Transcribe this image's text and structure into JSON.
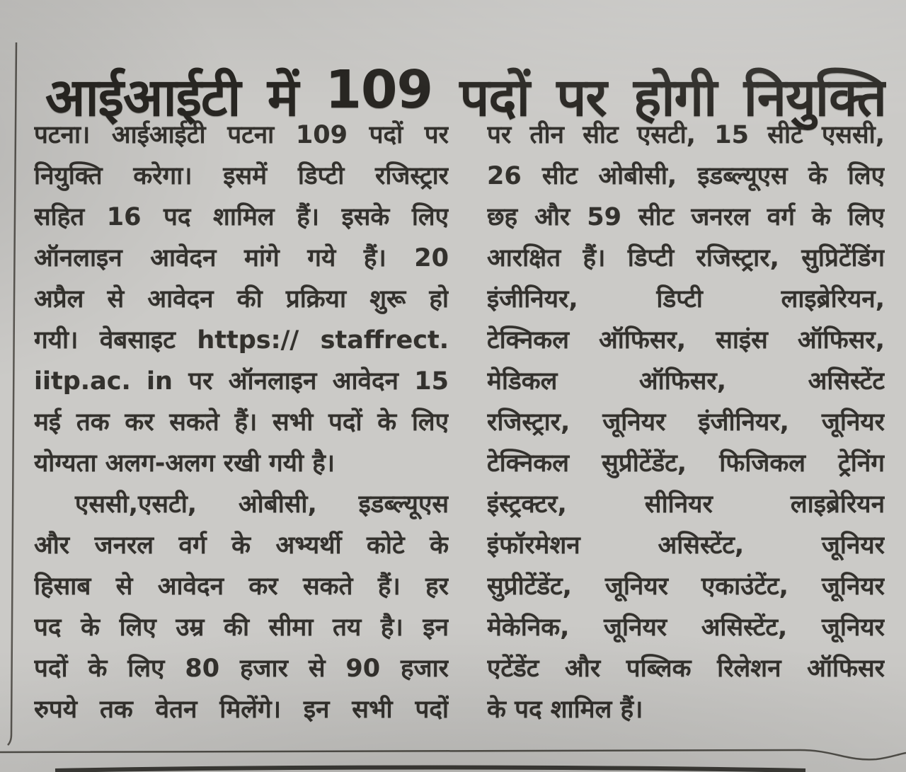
{
  "colors": {
    "paper": "#cbcac7",
    "ink": "#33312d",
    "headline_ink": "#282622",
    "rule": "#45423c"
  },
  "article": {
    "headline": "आईआईटी में 109 पदों पर होगी नियुक्ति",
    "left_column_lines": [
      {
        "text": "पटना। आईआईटी पटना 109 पदों पर"
      },
      {
        "text": "नियुक्ति करेगा। इसमें डिप्टी रजिस्ट्रार"
      },
      {
        "text": "सहित 16 पद शामिल हैं। इसके लिए"
      },
      {
        "text": "ऑनलाइन आवेदन मांगे गये हैं। 20"
      },
      {
        "text": "अप्रैल से आवेदन की प्रक्रिया शुरू हो"
      },
      {
        "text": "गयी। वेबसाइट https:// staffrect."
      },
      {
        "text": "iitp.ac. in पर ऑनलाइन आवेदन 15"
      },
      {
        "text": "मई तक कर सकते हैं। सभी पदों के लिए"
      },
      {
        "text": "योग्यता अलग-अलग रखी गयी है।",
        "end": true
      },
      {
        "text": "एससी,एसटी, ओबीसी, इडब्ल्यूएस",
        "indent": true
      },
      {
        "text": "और जनरल वर्ग के अभ्यर्थी कोटे के"
      },
      {
        "text": "हिसाब से आवेदन कर सकते हैं। हर"
      },
      {
        "text": "पद के लिए उम्र की सीमा तय है। इन"
      },
      {
        "text": "पदों के लिए 80 हजार से 90 हजार"
      },
      {
        "text": "रुपये तक वेतन मिलेंगे। इन सभी पदों"
      }
    ],
    "right_column_lines": [
      {
        "text": "पर तीन सीट एसटी, 15 सीट एससी,"
      },
      {
        "text": "26 सीट ओबीसी, इडब्ल्यूएस के लिए"
      },
      {
        "text": "छह और 59 सीट जनरल वर्ग के लिए"
      },
      {
        "text": "आरक्षित हैं। डिप्टी रजिस्ट्रार, सुप्रिटेंडिंग"
      },
      {
        "text": "इंजीनियर, डिप्टी लाइब्रेरियन,"
      },
      {
        "text": "टेक्निकल ऑफिसर, साइंस ऑफिसर,"
      },
      {
        "text": "मेडिकल ऑफिसर, असिस्टेंट"
      },
      {
        "text": "रजिस्ट्रार, जूनियर इंजीनियर, जूनियर"
      },
      {
        "text": "टेक्निकल सुप्रीटेंडेंट, फिजिकल ट्रेनिंग"
      },
      {
        "text": "इंस्ट्रक्टर, सीनियर लाइब्रेरियन"
      },
      {
        "text": "इंफॉरमेशन असिस्टेंट, जूनियर"
      },
      {
        "text": "सुप्रीटेंडेंट, जूनियर एकाउंटेंट, जूनियर"
      },
      {
        "text": "मेकेनिक, जूनियर असिस्टेंट, जूनियर"
      },
      {
        "text": "एटेंडेंट और पब्लिक रिलेशन ऑफिसर"
      },
      {
        "text": "के पद शामिल हैं।",
        "end": true
      }
    ]
  }
}
